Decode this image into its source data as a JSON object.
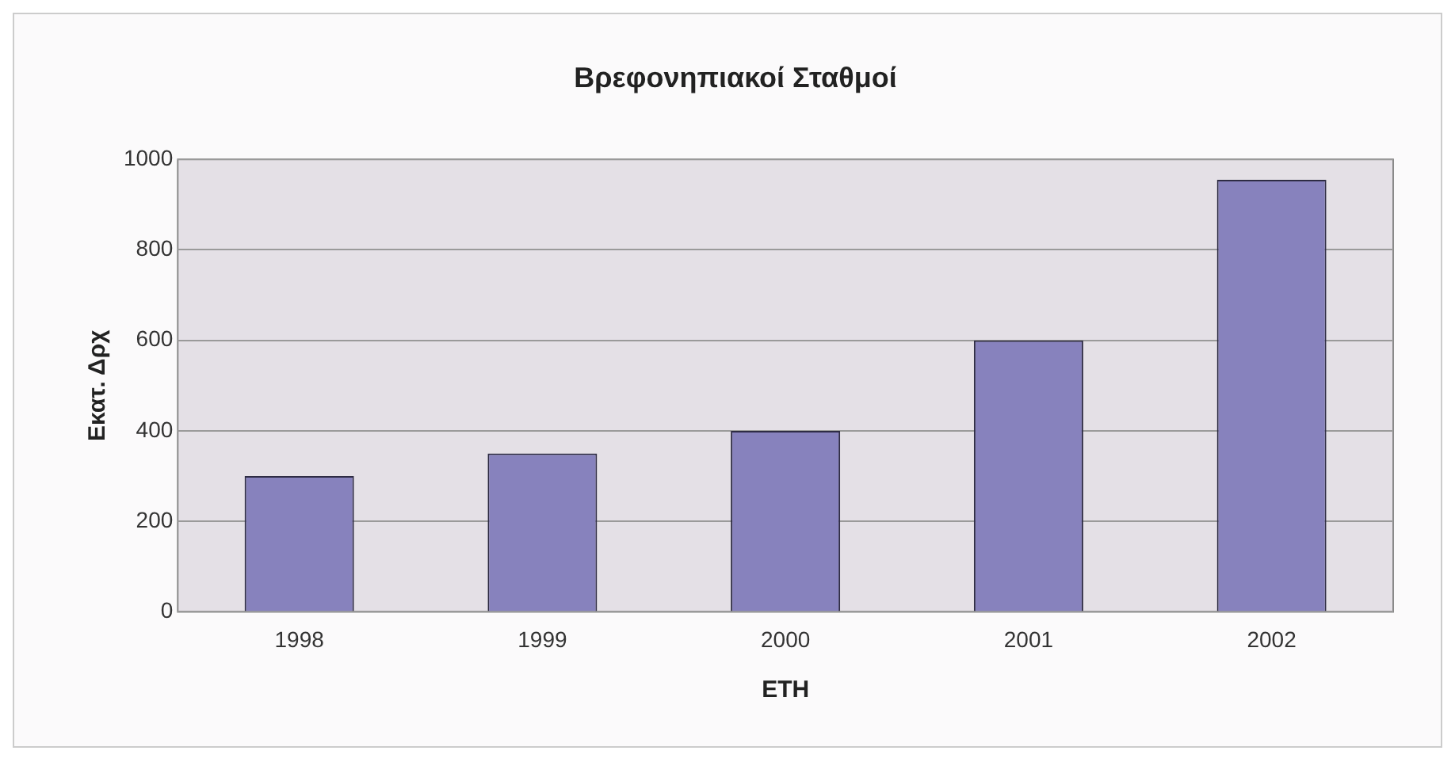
{
  "chart_data": {
    "type": "bar",
    "title": "Βρεφονηπιακοί Σταθμοί",
    "xlabel": "ΕΤΗ",
    "ylabel": "Εκατ. Δρχ",
    "categories": [
      "1998",
      "1999",
      "2000",
      "2001",
      "2002"
    ],
    "values": [
      300,
      350,
      400,
      600,
      955
    ],
    "color": "#8782bd",
    "ylim": [
      0,
      1000
    ],
    "yticks": [
      0,
      200,
      400,
      600,
      800,
      1000
    ],
    "grid": "y",
    "legend": false
  }
}
